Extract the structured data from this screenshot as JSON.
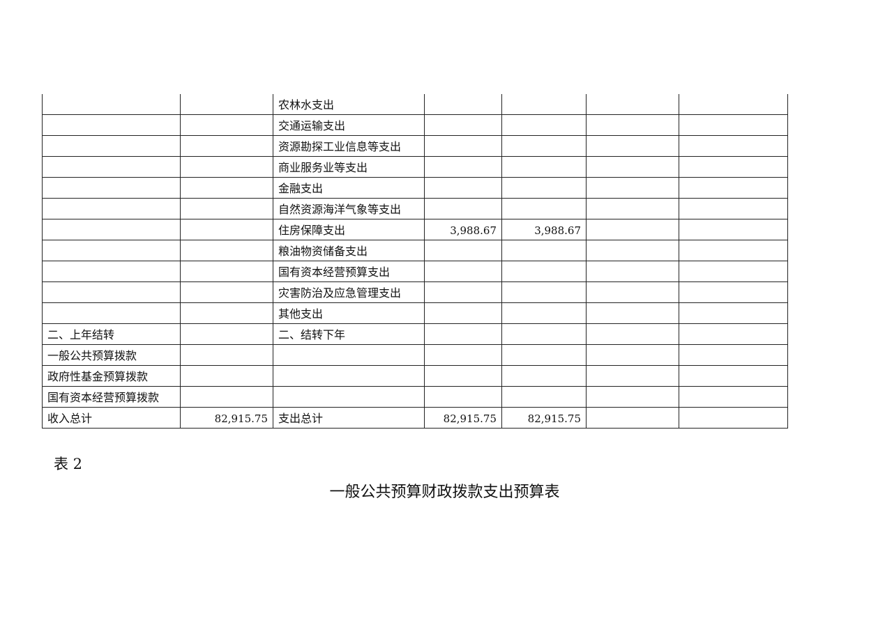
{
  "table": {
    "rows": [
      [
        "",
        "",
        "农林水支出",
        "",
        "",
        "",
        ""
      ],
      [
        "",
        "",
        "交通运输支出",
        "",
        "",
        "",
        ""
      ],
      [
        "",
        "",
        "资源勘探工业信息等支出",
        "",
        "",
        "",
        ""
      ],
      [
        "",
        "",
        "商业服务业等支出",
        "",
        "",
        "",
        ""
      ],
      [
        "",
        "",
        "金融支出",
        "",
        "",
        "",
        ""
      ],
      [
        "",
        "",
        "自然资源海洋气象等支出",
        "",
        "",
        "",
        ""
      ],
      [
        "",
        "",
        "住房保障支出",
        "3,988.67",
        "3,988.67",
        "",
        ""
      ],
      [
        "",
        "",
        "粮油物资储备支出",
        "",
        "",
        "",
        ""
      ],
      [
        "",
        "",
        "国有资本经营预算支出",
        "",
        "",
        "",
        ""
      ],
      [
        "",
        "",
        "灾害防治及应急管理支出",
        "",
        "",
        "",
        ""
      ],
      [
        "",
        "",
        "其他支出",
        "",
        "",
        "",
        ""
      ],
      [
        "二、上年结转",
        "",
        "二、结转下年",
        "",
        "",
        "",
        ""
      ],
      [
        "一般公共预算拨款",
        "",
        "",
        "",
        "",
        "",
        ""
      ],
      [
        "政府性基金预算拨款",
        "",
        "",
        "",
        "",
        "",
        ""
      ],
      [
        "国有资本经营预算拨款",
        "",
        "",
        "",
        "",
        "",
        ""
      ],
      [
        "收入总计",
        "82,915.75",
        "支出总计",
        "82,915.75",
        "82,915.75",
        "",
        ""
      ]
    ]
  },
  "next_table": {
    "label": "表 2",
    "title": "一般公共预算财政拨款支出预算表"
  }
}
